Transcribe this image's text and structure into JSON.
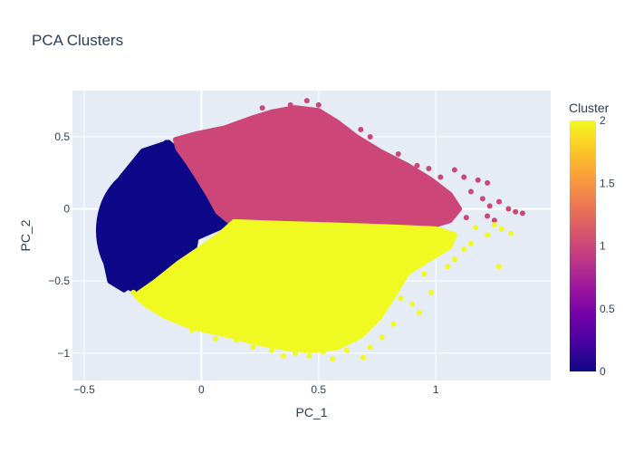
{
  "chart_data": {
    "type": "scatter",
    "title": "PCA Clusters",
    "xlabel": "PC_1",
    "ylabel": "PC_2",
    "xlim": [
      -0.55,
      1.49
    ],
    "ylim": [
      -1.19,
      0.82
    ],
    "xticks": [
      -0.5,
      0,
      0.5,
      1
    ],
    "xtick_labels": [
      "−0.5",
      "0",
      "0.5",
      "1"
    ],
    "yticks": [
      -1,
      -0.5,
      0,
      0.5
    ],
    "ytick_labels": [
      "−1",
      "−0.5",
      "0",
      "0.5"
    ],
    "grid": true,
    "colorbar": {
      "title": "Cluster",
      "range": [
        0,
        2
      ],
      "ticks": [
        0,
        0.5,
        1,
        1.5,
        2
      ],
      "tick_labels": [
        "0",
        "0.5",
        "1",
        "1.5",
        "2"
      ],
      "colorscale": [
        "#0d0887",
        "#46039f",
        "#7201a8",
        "#9c179e",
        "#bd3786",
        "#d8576b",
        "#ed7953",
        "#fb9f3a",
        "#fdca26",
        "#f0f921"
      ]
    },
    "clusters": [
      {
        "cluster": 0,
        "color": "#0d0887",
        "regions": [
          {
            "kind": "ellipse",
            "cx": -0.23,
            "cy": -0.15,
            "rx": 0.21,
            "ry": 0.43
          },
          {
            "kind": "polygon",
            "points": [
              [
                -0.14,
                0.46
              ],
              [
                -0.1,
                0.4
              ],
              [
                -0.05,
                0.28
              ],
              [
                0.0,
                0.18
              ],
              [
                0.05,
                0.05
              ],
              [
                0.12,
                -0.1
              ],
              [
                0.02,
                -0.17
              ],
              [
                -0.09,
                -0.25
              ],
              [
                -0.18,
                -0.36
              ],
              [
                -0.27,
                -0.48
              ],
              [
                -0.33,
                -0.56
              ],
              [
                -0.39,
                -0.5
              ],
              [
                -0.43,
                -0.2
              ],
              [
                -0.41,
                0.05
              ],
              [
                -0.34,
                0.22
              ],
              [
                -0.25,
                0.4
              ]
            ]
          }
        ],
        "scatter": [
          [
            -0.41,
            -0.28
          ],
          [
            -0.43,
            -0.18
          ],
          [
            -0.4,
            0.02
          ],
          [
            -0.36,
            0.12
          ],
          [
            -0.3,
            0.27
          ],
          [
            -0.22,
            0.38
          ],
          [
            -0.15,
            0.46
          ],
          [
            -0.1,
            0.43
          ],
          [
            -0.36,
            -0.46
          ],
          [
            -0.31,
            -0.54
          ],
          [
            -0.27,
            -0.55
          ],
          [
            -0.2,
            -0.47
          ],
          [
            -0.06,
            0.32
          ],
          [
            0.06,
            0.02
          ],
          [
            0.1,
            -0.09
          ]
        ]
      },
      {
        "cluster": 1,
        "color": "#cc4778",
        "regions": [
          {
            "kind": "polygon",
            "points": [
              [
                -0.11,
                0.48
              ],
              [
                -0.02,
                0.52
              ],
              [
                0.1,
                0.56
              ],
              [
                0.22,
                0.63
              ],
              [
                0.3,
                0.67
              ],
              [
                0.4,
                0.7
              ],
              [
                0.5,
                0.68
              ],
              [
                0.58,
                0.6
              ],
              [
                0.66,
                0.5
              ],
              [
                0.76,
                0.4
              ],
              [
                0.88,
                0.3
              ],
              [
                0.98,
                0.2
              ],
              [
                1.06,
                0.1
              ],
              [
                1.1,
                0.0
              ],
              [
                1.06,
                -0.08
              ],
              [
                0.98,
                -0.12
              ],
              [
                0.8,
                -0.12
              ],
              [
                0.6,
                -0.12
              ],
              [
                0.4,
                -0.12
              ],
              [
                0.24,
                -0.1
              ],
              [
                0.13,
                -0.1
              ],
              [
                0.07,
                -0.02
              ],
              [
                0.03,
                0.1
              ],
              [
                -0.02,
                0.23
              ],
              [
                -0.06,
                0.33
              ],
              [
                -0.1,
                0.42
              ]
            ]
          }
        ],
        "scatter": [
          [
            0.26,
            0.7
          ],
          [
            0.38,
            0.72
          ],
          [
            0.45,
            0.75
          ],
          [
            0.5,
            0.72
          ],
          [
            0.56,
            0.62
          ],
          [
            0.68,
            0.55
          ],
          [
            0.72,
            0.5
          ],
          [
            0.84,
            0.38
          ],
          [
            0.92,
            0.3
          ],
          [
            0.97,
            0.28
          ],
          [
            1.02,
            0.22
          ],
          [
            1.08,
            0.27
          ],
          [
            1.12,
            0.22
          ],
          [
            1.18,
            0.2
          ],
          [
            1.22,
            0.18
          ],
          [
            1.15,
            0.12
          ],
          [
            1.2,
            0.07
          ],
          [
            1.23,
            0.02
          ],
          [
            1.27,
            0.05
          ],
          [
            1.31,
            0.0
          ],
          [
            1.34,
            -0.02
          ],
          [
            1.37,
            -0.03
          ],
          [
            1.22,
            -0.05
          ],
          [
            1.25,
            -0.08
          ],
          [
            1.13,
            -0.06
          ]
        ]
      },
      {
        "cluster": 2,
        "color": "#f0f921",
        "regions": [
          {
            "kind": "polygon",
            "points": [
              [
                0.14,
                -0.09
              ],
              [
                0.3,
                -0.1
              ],
              [
                0.5,
                -0.11
              ],
              [
                0.7,
                -0.12
              ],
              [
                0.86,
                -0.13
              ],
              [
                1.0,
                -0.14
              ],
              [
                1.08,
                -0.18
              ],
              [
                1.06,
                -0.26
              ],
              [
                0.98,
                -0.34
              ],
              [
                0.88,
                -0.44
              ],
              [
                0.82,
                -0.6
              ],
              [
                0.76,
                -0.75
              ],
              [
                0.68,
                -0.88
              ],
              [
                0.58,
                -0.96
              ],
              [
                0.48,
                -0.98
              ],
              [
                0.38,
                -0.97
              ],
              [
                0.24,
                -0.93
              ],
              [
                0.1,
                -0.87
              ],
              [
                -0.04,
                -0.82
              ],
              [
                -0.16,
                -0.74
              ],
              [
                -0.24,
                -0.66
              ],
              [
                -0.28,
                -0.6
              ],
              [
                -0.2,
                -0.51
              ],
              [
                -0.1,
                -0.38
              ],
              [
                0.0,
                -0.27
              ],
              [
                0.07,
                -0.19
              ]
            ]
          }
        ],
        "scatter": [
          [
            -0.29,
            -0.58
          ],
          [
            -0.25,
            -0.63
          ],
          [
            -0.22,
            -0.68
          ],
          [
            -0.1,
            -0.78
          ],
          [
            -0.04,
            -0.84
          ],
          [
            0.06,
            -0.9
          ],
          [
            0.15,
            -0.91
          ],
          [
            0.22,
            -0.96
          ],
          [
            0.3,
            -0.98
          ],
          [
            0.35,
            -1.02
          ],
          [
            0.4,
            -1.0
          ],
          [
            0.46,
            -1.02
          ],
          [
            0.52,
            -0.99
          ],
          [
            0.56,
            -1.04
          ],
          [
            0.62,
            -0.98
          ],
          [
            0.69,
            -1.03
          ],
          [
            0.72,
            -0.96
          ],
          [
            0.77,
            -0.89
          ],
          [
            0.82,
            -0.8
          ],
          [
            0.9,
            -0.66
          ],
          [
            0.98,
            -0.58
          ],
          [
            1.05,
            -0.4
          ],
          [
            1.12,
            -0.28
          ],
          [
            1.15,
            -0.24
          ],
          [
            1.22,
            -0.18
          ],
          [
            1.28,
            -0.14
          ],
          [
            1.32,
            -0.17
          ],
          [
            1.27,
            -0.4
          ],
          [
            1.08,
            -0.35
          ],
          [
            0.95,
            -0.45
          ],
          [
            1.17,
            -0.13
          ],
          [
            1.25,
            -0.11
          ],
          [
            0.85,
            -0.62
          ],
          [
            0.93,
            -0.72
          ],
          [
            0.64,
            -0.9
          ]
        ]
      }
    ]
  }
}
